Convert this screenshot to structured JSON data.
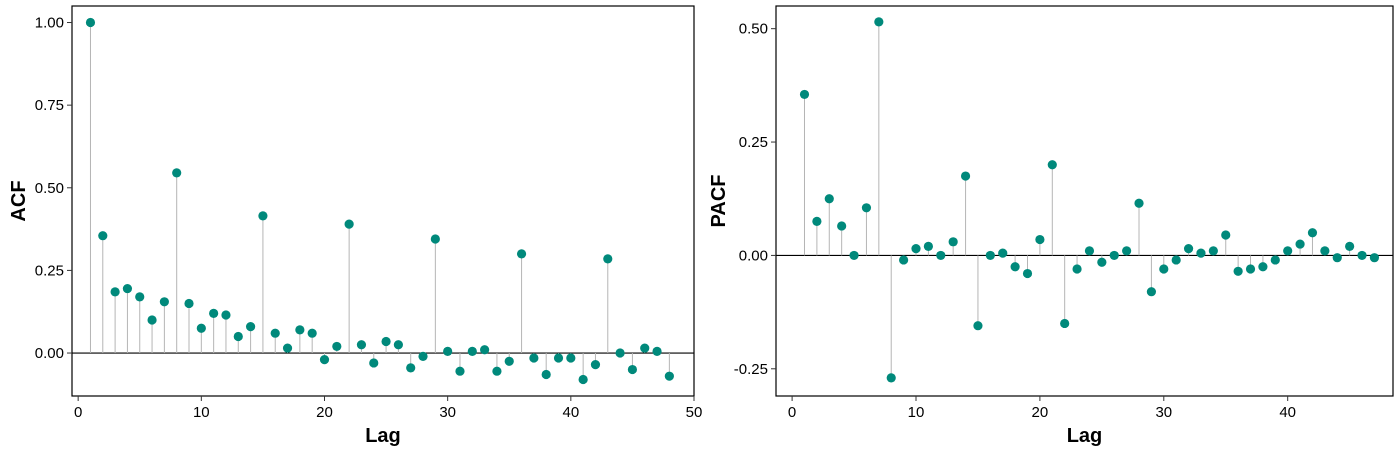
{
  "colors": {
    "point": "#00897b",
    "stem": "#b5b5b5",
    "zero_line": "#000000",
    "frame": "#000000"
  },
  "chart_data": [
    {
      "type": "scatter",
      "style": "lollipop",
      "title": "",
      "xlabel": "Lag",
      "ylabel": "ACF",
      "xlim": [
        -0.5,
        50
      ],
      "ylim": [
        -0.13,
        1.05
      ],
      "xticks": [
        0,
        10,
        20,
        30,
        40,
        50
      ],
      "xtick_labels": [
        "0",
        "10",
        "20",
        "30",
        "40",
        "50"
      ],
      "yticks": [
        0,
        0.25,
        0.5,
        0.75,
        1
      ],
      "ytick_labels": [
        "0.00",
        "0.25",
        "0.50",
        "0.75",
        "1.00"
      ],
      "x": [
        1,
        2,
        3,
        4,
        5,
        6,
        7,
        8,
        9,
        10,
        11,
        12,
        13,
        14,
        15,
        16,
        17,
        18,
        19,
        20,
        21,
        22,
        23,
        24,
        25,
        26,
        27,
        28,
        29,
        30,
        31,
        32,
        33,
        34,
        35,
        36,
        37,
        38,
        39,
        40,
        41,
        42,
        43,
        44,
        45,
        46,
        47,
        48
      ],
      "y": [
        1.0,
        0.355,
        0.185,
        0.195,
        0.17,
        0.1,
        0.155,
        0.545,
        0.15,
        0.075,
        0.12,
        0.115,
        0.05,
        0.08,
        0.415,
        0.06,
        0.015,
        0.07,
        0.06,
        -0.02,
        0.02,
        0.39,
        0.025,
        -0.03,
        0.035,
        0.025,
        -0.045,
        -0.01,
        0.345,
        0.005,
        -0.055,
        0.005,
        0.01,
        -0.055,
        -0.025,
        0.3,
        -0.015,
        -0.065,
        -0.015,
        -0.015,
        -0.08,
        -0.035,
        0.285,
        0.0,
        -0.05,
        0.015,
        0.005,
        -0.07
      ]
    },
    {
      "type": "scatter",
      "style": "lollipop",
      "title": "",
      "xlabel": "Lag",
      "ylabel": "PACF",
      "xlim": [
        -1.3,
        48.5
      ],
      "ylim": [
        -0.31,
        0.55
      ],
      "xticks": [
        0,
        10,
        20,
        30,
        40
      ],
      "xtick_labels": [
        "0",
        "10",
        "20",
        "30",
        "40"
      ],
      "yticks": [
        -0.25,
        0,
        0.25,
        0.5
      ],
      "ytick_labels": [
        "-0.25",
        "0.00",
        "0.25",
        "0.50"
      ],
      "x": [
        1,
        2,
        3,
        4,
        5,
        6,
        7,
        8,
        9,
        10,
        11,
        12,
        13,
        14,
        15,
        16,
        17,
        18,
        19,
        20,
        21,
        22,
        23,
        24,
        25,
        26,
        27,
        28,
        29,
        30,
        31,
        32,
        33,
        34,
        35,
        36,
        37,
        38,
        39,
        40,
        41,
        42,
        43,
        44,
        45,
        46,
        47
      ],
      "y": [
        0.355,
        0.075,
        0.125,
        0.065,
        0.0,
        0.105,
        0.515,
        -0.27,
        -0.01,
        0.015,
        0.02,
        0.0,
        0.03,
        0.175,
        -0.155,
        0.0,
        0.005,
        -0.025,
        -0.04,
        0.035,
        0.2,
        -0.15,
        -0.03,
        0.01,
        -0.015,
        0.0,
        0.01,
        0.115,
        -0.08,
        -0.03,
        -0.01,
        0.015,
        0.005,
        0.01,
        0.045,
        -0.035,
        -0.03,
        -0.025,
        -0.01,
        0.01,
        0.025,
        0.05,
        0.01,
        -0.005,
        0.02,
        0.0,
        -0.005
      ]
    }
  ]
}
